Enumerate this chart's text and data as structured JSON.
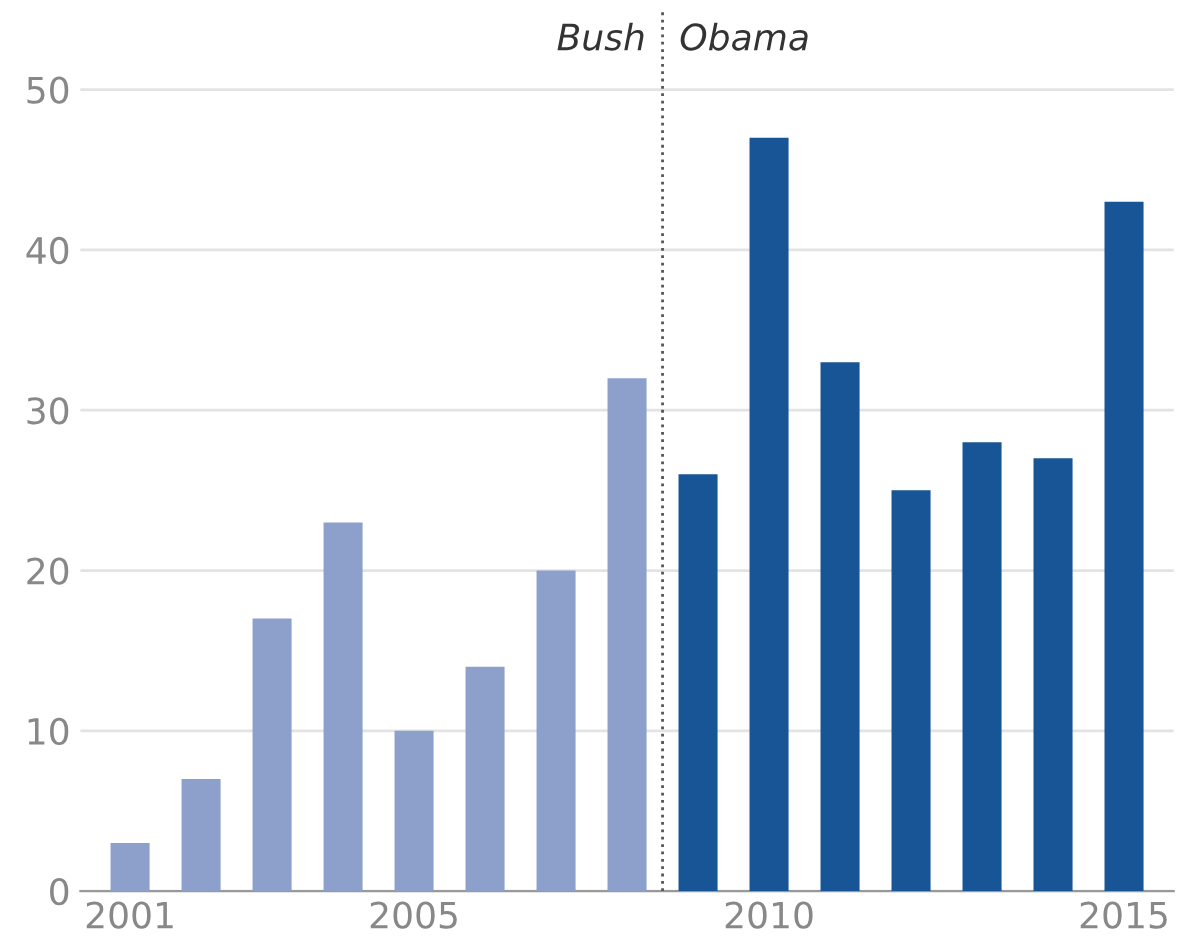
{
  "chart_data": {
    "type": "bar",
    "x": [
      2001,
      2002,
      2003,
      2004,
      2005,
      2006,
      2007,
      2008,
      2009,
      2010,
      2011,
      2012,
      2013,
      2014,
      2015
    ],
    "values": [
      3,
      7,
      17,
      23,
      10,
      14,
      20,
      32,
      26,
      47,
      33,
      25,
      28,
      27,
      43
    ],
    "colors": [
      "#8da0cb",
      "#8da0cb",
      "#8da0cb",
      "#8da0cb",
      "#8da0cb",
      "#8da0cb",
      "#8da0cb",
      "#8da0cb",
      "#175596",
      "#175596",
      "#175596",
      "#175596",
      "#175596",
      "#175596",
      "#175596"
    ],
    "xlim": [
      2000.3,
      2015.7
    ],
    "xticks": [
      2001,
      2005,
      2010,
      2015
    ],
    "ylim": [
      0,
      55
    ],
    "yticks": [
      0,
      10,
      20,
      30,
      40,
      50
    ],
    "grid": "y",
    "ref_lines": [
      {
        "axis": "x",
        "value": 2008.5,
        "label": null,
        "color": "#555555",
        "line_style": "dotted"
      }
    ],
    "annotations": [
      "Bush",
      "Obama"
    ]
  }
}
